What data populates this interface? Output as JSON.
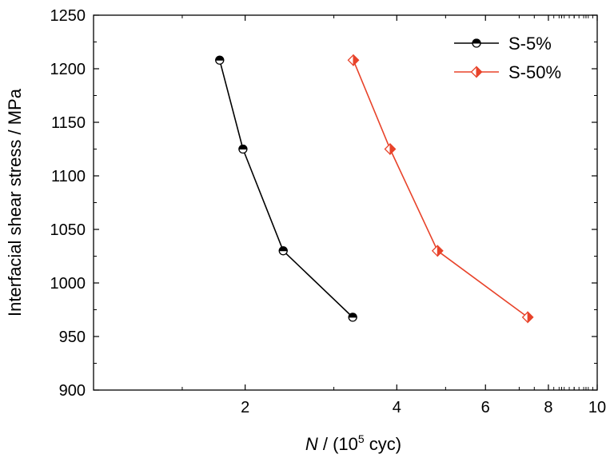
{
  "chart_data": {
    "type": "line",
    "x_scale": "log",
    "xlim": [
      1,
      10
    ],
    "ylim": [
      900,
      1250
    ],
    "xlabel_parts": [
      "N",
      " / (10",
      "5",
      " cyc)"
    ],
    "ylabel": "Interfacial shear stress / MPa",
    "x_ticks_major": [
      2,
      4,
      6,
      8,
      10
    ],
    "x_tick_labels": [
      "2",
      "4",
      "6",
      "8",
      "10"
    ],
    "y_ticks": [
      900,
      950,
      1000,
      1050,
      1100,
      1150,
      1200,
      1250
    ],
    "y_tick_labels": [
      "900",
      "950",
      "1000",
      "1050",
      "1100",
      "1150",
      "1200",
      "1250"
    ],
    "grid": false,
    "legend_position": "top-right",
    "series": [
      {
        "name": "S-5%",
        "color": "#000000",
        "marker": "half-filled-circle",
        "x": [
          1.78,
          1.98,
          2.38,
          3.27
        ],
        "y": [
          1208,
          1125,
          1030,
          968
        ]
      },
      {
        "name": "S-50%",
        "color": "#e8432a",
        "marker": "half-filled-diamond",
        "x": [
          3.28,
          3.88,
          4.82,
          7.28
        ],
        "y": [
          1208,
          1125,
          1030,
          968
        ]
      }
    ]
  }
}
